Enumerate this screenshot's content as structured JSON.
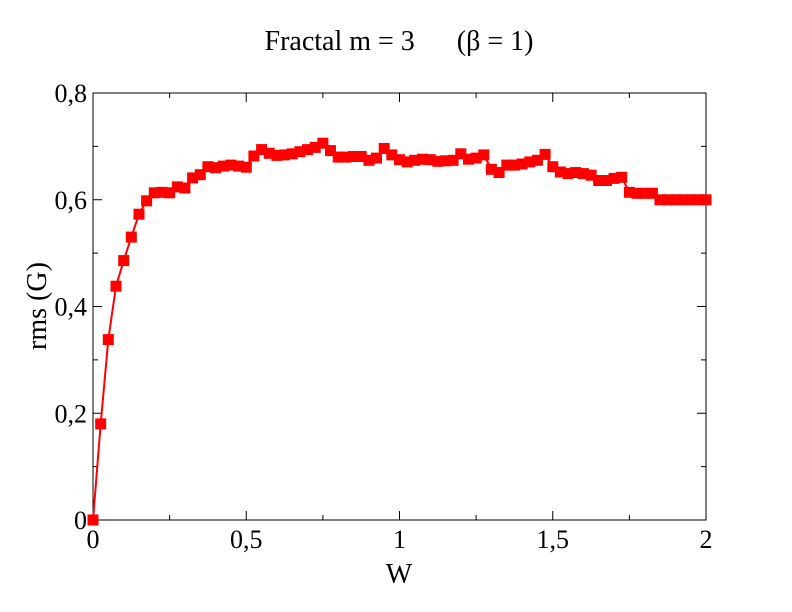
{
  "chart_data": {
    "type": "line",
    "title": "Fractal m = 3      (β = 1)",
    "xlabel": "W",
    "ylabel": "rms (G)",
    "xlim": [
      0,
      2
    ],
    "ylim": [
      0,
      0.8
    ],
    "x_ticks": [
      {
        "value": 0,
        "label": "0"
      },
      {
        "value": 0.5,
        "label": "0,5"
      },
      {
        "value": 1,
        "label": "1"
      },
      {
        "value": 1.5,
        "label": "1,5"
      },
      {
        "value": 2,
        "label": "2"
      }
    ],
    "y_ticks": [
      {
        "value": 0,
        "label": "0"
      },
      {
        "value": 0.2,
        "label": "0,2"
      },
      {
        "value": 0.4,
        "label": "0,4"
      },
      {
        "value": 0.6,
        "label": "0,6"
      },
      {
        "value": 0.8,
        "label": "0,8"
      }
    ],
    "x_minor_step": 0.25,
    "y_minor_step": 0.1,
    "grid": false,
    "legend": "none",
    "series": [
      {
        "color": "#ff0000",
        "marker": "square",
        "x": [
          0,
          0.025,
          0.05,
          0.075,
          0.1,
          0.125,
          0.15,
          0.175,
          0.2,
          0.225,
          0.25,
          0.275,
          0.3,
          0.325,
          0.35,
          0.375,
          0.4,
          0.425,
          0.45,
          0.475,
          0.5,
          0.525,
          0.55,
          0.575,
          0.6,
          0.625,
          0.65,
          0.675,
          0.7,
          0.725,
          0.75,
          0.775,
          0.8,
          0.825,
          0.85,
          0.875,
          0.9,
          0.925,
          0.95,
          0.975,
          1,
          1.025,
          1.05,
          1.075,
          1.1,
          1.125,
          1.15,
          1.175,
          1.2,
          1.225,
          1.25,
          1.275,
          1.3,
          1.325,
          1.35,
          1.375,
          1.4,
          1.425,
          1.45,
          1.475,
          1.5,
          1.525,
          1.55,
          1.575,
          1.6,
          1.625,
          1.65,
          1.675,
          1.7,
          1.725,
          1.75,
          1.775,
          1.8,
          1.825,
          1.85,
          1.875,
          1.9,
          1.925,
          1.95,
          1.975,
          2.0
        ],
        "y": [
          0.0,
          0.18,
          0.338,
          0.438,
          0.486,
          0.53,
          0.573,
          0.598,
          0.613,
          0.614,
          0.613,
          0.624,
          0.622,
          0.641,
          0.647,
          0.662,
          0.66,
          0.663,
          0.665,
          0.663,
          0.661,
          0.682,
          0.694,
          0.687,
          0.683,
          0.684,
          0.686,
          0.69,
          0.694,
          0.698,
          0.706,
          0.692,
          0.68,
          0.68,
          0.681,
          0.681,
          0.674,
          0.678,
          0.696,
          0.684,
          0.675,
          0.671,
          0.674,
          0.676,
          0.675,
          0.672,
          0.673,
          0.674,
          0.686,
          0.676,
          0.678,
          0.684,
          0.657,
          0.651,
          0.665,
          0.665,
          0.667,
          0.671,
          0.674,
          0.685,
          0.662,
          0.652,
          0.649,
          0.651,
          0.649,
          0.646,
          0.636,
          0.636,
          0.64,
          0.642,
          0.614,
          0.612,
          0.612,
          0.612,
          0.6,
          0.6,
          0.6,
          0.6,
          0.6,
          0.6,
          0.6
        ]
      }
    ]
  }
}
